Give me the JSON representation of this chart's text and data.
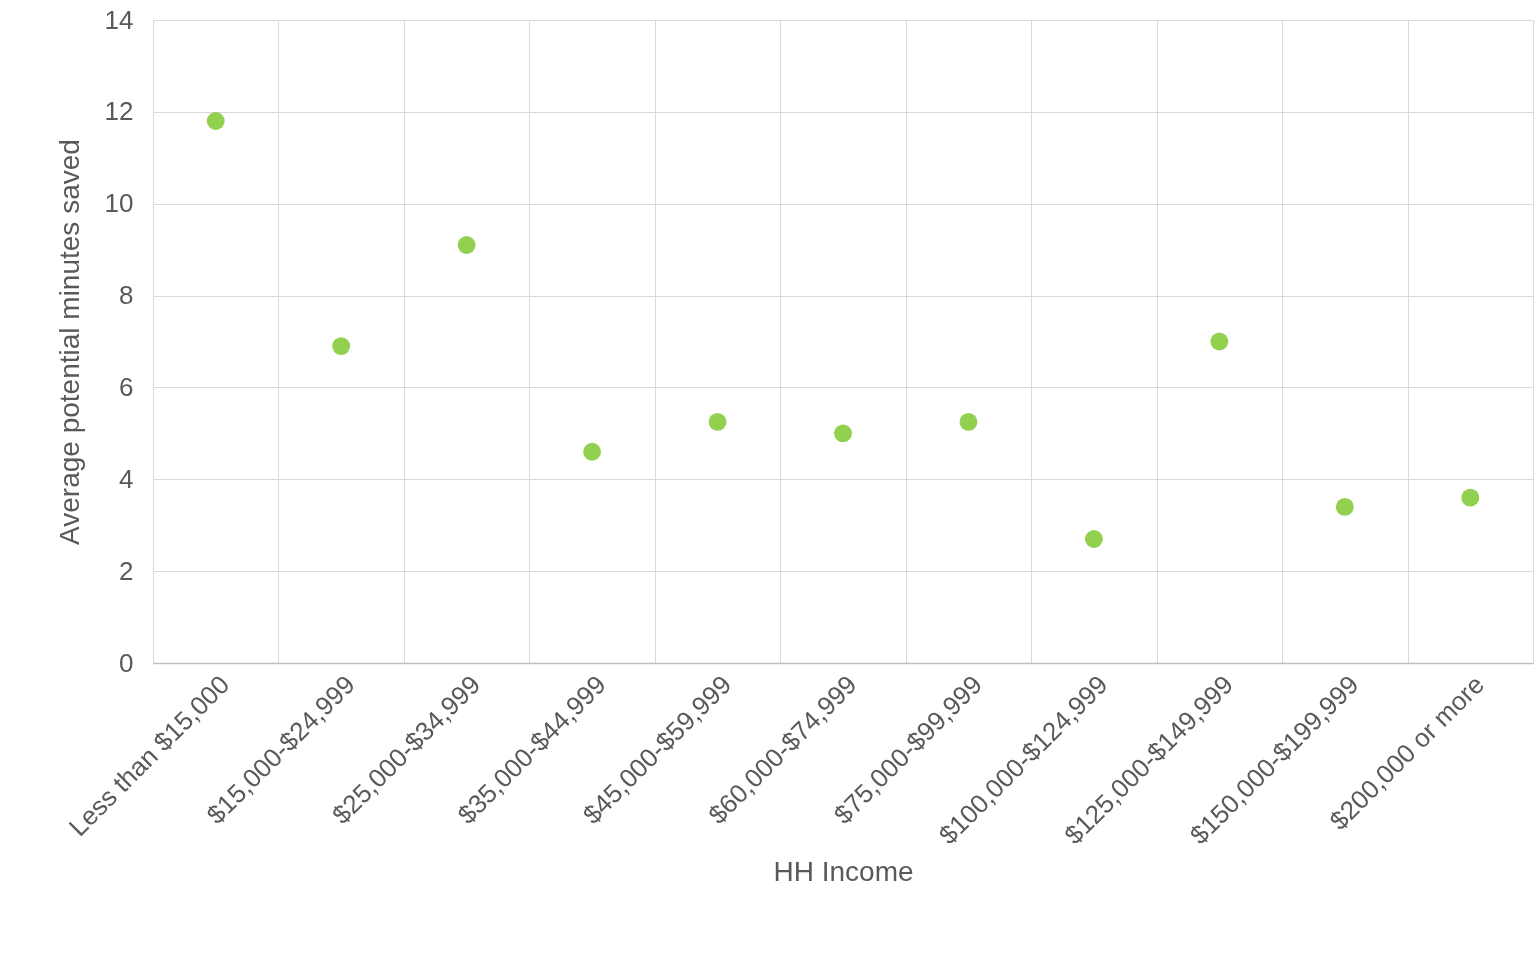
{
  "chart_data": {
    "type": "scatter",
    "xlabel": "HH Income",
    "ylabel": "Average potential minutes saved",
    "categories": [
      "Less than $15,000",
      "$15,000-$24,999",
      "$25,000-$34,999",
      "$35,000-$44,999",
      "$45,000-$59,999",
      "$60,000-$74,999",
      "$75,000-$99,999",
      "$100,000-$124,999",
      "$125,000-$149,999",
      "$150,000-$199,999",
      "$200,000 or more"
    ],
    "values": [
      11.8,
      6.9,
      9.1,
      4.6,
      5.25,
      5.0,
      5.25,
      2.7,
      7.0,
      3.4,
      3.6
    ],
    "color": "#92d050",
    "marker": "circle",
    "ylim": [
      0,
      14
    ],
    "yticks": [
      0,
      2,
      4,
      6,
      8,
      10,
      12,
      14
    ],
    "grid": true
  }
}
